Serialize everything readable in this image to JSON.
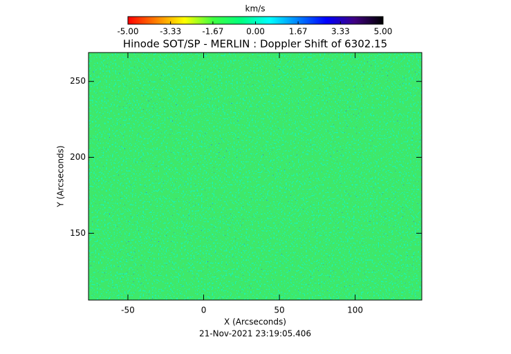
{
  "chart_data": {
    "type": "image",
    "title": "Hinode SOT/SP - MERLIN : Doppler Shift of 6302.15",
    "xlabel": "X (Arcseconds)",
    "ylabel": "Y (Arcseconds)",
    "footer": "21-Nov-2021 23:19:05.406",
    "xlim": [
      -76,
      144
    ],
    "xticks": [
      -50,
      0,
      50,
      100
    ],
    "ylim": [
      106,
      269
    ],
    "yticks": [
      150,
      200,
      250
    ],
    "colorbar": {
      "label": "km/s",
      "range": [
        -5,
        5
      ],
      "colors": [
        "#ff0000",
        "#ff8000",
        "#ffff00",
        "#40ff40",
        "#00ff80",
        "#00ffff",
        "#0080ff",
        "#0000ff",
        "#400080",
        "#000000"
      ],
      "ticks": [
        {
          "value": -5,
          "label": "-5.00"
        },
        {
          "value": -3.33,
          "label": "-3.33"
        },
        {
          "value": -1.67,
          "label": "-1.67"
        },
        {
          "value": 0,
          "label": "0.00"
        },
        {
          "value": 1.67,
          "label": "1.67"
        },
        {
          "value": 3.33,
          "label": "3.33"
        },
        {
          "value": 5,
          "label": "5.00"
        }
      ]
    }
  }
}
